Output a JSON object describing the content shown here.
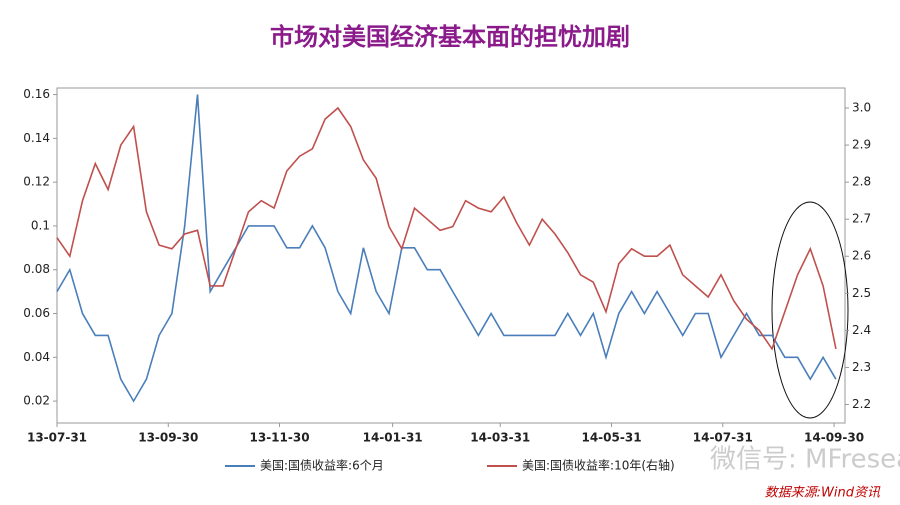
{
  "chart_data": {
    "type": "line",
    "title": "市场对美国经济基本面的担忧加剧",
    "x": [
      "13-07-31",
      "13-08-07",
      "13-08-14",
      "13-08-21",
      "13-08-28",
      "13-09-04",
      "13-09-11",
      "13-09-18",
      "13-09-25",
      "13-10-02",
      "13-10-09",
      "13-10-16",
      "13-10-23",
      "13-10-30",
      "13-11-06",
      "13-11-13",
      "13-11-20",
      "13-11-27",
      "13-12-04",
      "13-12-11",
      "13-12-18",
      "13-12-25",
      "14-01-01",
      "14-01-08",
      "14-01-15",
      "14-01-22",
      "14-01-29",
      "14-02-05",
      "14-02-12",
      "14-02-19",
      "14-02-26",
      "14-03-05",
      "14-03-12",
      "14-03-19",
      "14-03-26",
      "14-04-02",
      "14-04-09",
      "14-04-16",
      "14-04-23",
      "14-04-30",
      "14-05-07",
      "14-05-14",
      "14-05-21",
      "14-05-28",
      "14-06-04",
      "14-06-11",
      "14-06-18",
      "14-06-25",
      "14-07-02",
      "14-07-09",
      "14-07-16",
      "14-07-23",
      "14-07-30",
      "14-08-06",
      "14-08-13",
      "14-08-20",
      "14-08-27",
      "14-09-03",
      "14-09-10",
      "14-09-17",
      "14-09-24",
      "14-10-01"
    ],
    "series": [
      {
        "name": "美国:国债收益率:6个月",
        "color": "#4a7ebb",
        "values": [
          0.07,
          0.08,
          0.06,
          0.05,
          0.05,
          0.03,
          0.02,
          0.03,
          0.05,
          0.06,
          0.1,
          0.16,
          0.07,
          0.08,
          0.09,
          0.1,
          0.1,
          0.1,
          0.09,
          0.09,
          0.1,
          0.09,
          0.07,
          0.06,
          0.09,
          0.07,
          0.06,
          0.09,
          0.09,
          0.08,
          0.08,
          0.07,
          0.06,
          0.05,
          0.06,
          0.05,
          0.05,
          0.05,
          0.05,
          0.05,
          0.06,
          0.05,
          0.06,
          0.04,
          0.06,
          0.07,
          0.06,
          0.07,
          0.06,
          0.05,
          0.06,
          0.06,
          0.04,
          0.05,
          0.06,
          0.05,
          0.05,
          0.04,
          0.04,
          0.03,
          0.04,
          0.03
        ]
      },
      {
        "name": "美国:国债收益率:10年(右轴)",
        "color": "#c0504d",
        "axis": "y2",
        "values": [
          2.65,
          2.6,
          2.75,
          2.85,
          2.78,
          2.9,
          2.95,
          2.72,
          2.63,
          2.62,
          2.66,
          2.67,
          2.52,
          2.52,
          2.62,
          2.72,
          2.75,
          2.73,
          2.83,
          2.87,
          2.89,
          2.97,
          3.0,
          2.95,
          2.86,
          2.81,
          2.68,
          2.62,
          2.73,
          2.7,
          2.67,
          2.68,
          2.75,
          2.73,
          2.72,
          2.76,
          2.69,
          2.63,
          2.7,
          2.66,
          2.61,
          2.55,
          2.53,
          2.45,
          2.58,
          2.62,
          2.6,
          2.6,
          2.63,
          2.55,
          2.52,
          2.49,
          2.55,
          2.48,
          2.43,
          2.4,
          2.35,
          2.45,
          2.55,
          2.62,
          2.52,
          2.35
        ]
      }
    ],
    "xlim": [
      "13-07-31",
      "14-10-06"
    ],
    "xticks": [
      "13-07-31",
      "13-09-30",
      "13-11-30",
      "14-01-31",
      "14-03-31",
      "14-05-31",
      "14-07-31",
      "14-09-30"
    ],
    "ylim": [
      0.01,
      0.163
    ],
    "yticks": [
      0.02,
      0.04,
      0.06,
      0.08,
      0.1,
      0.12,
      0.14,
      0.16
    ],
    "y2lim": [
      2.15,
      3.054
    ],
    "y2ticks": [
      2.2,
      2.3,
      2.4,
      2.5,
      2.6,
      2.7,
      2.8,
      2.9,
      {
        "value": 3,
        "label": "3.0"
      }
    ],
    "grid": false,
    "watermark": "微信号: MFresearch",
    "source": "数据来源:Wind资讯"
  }
}
